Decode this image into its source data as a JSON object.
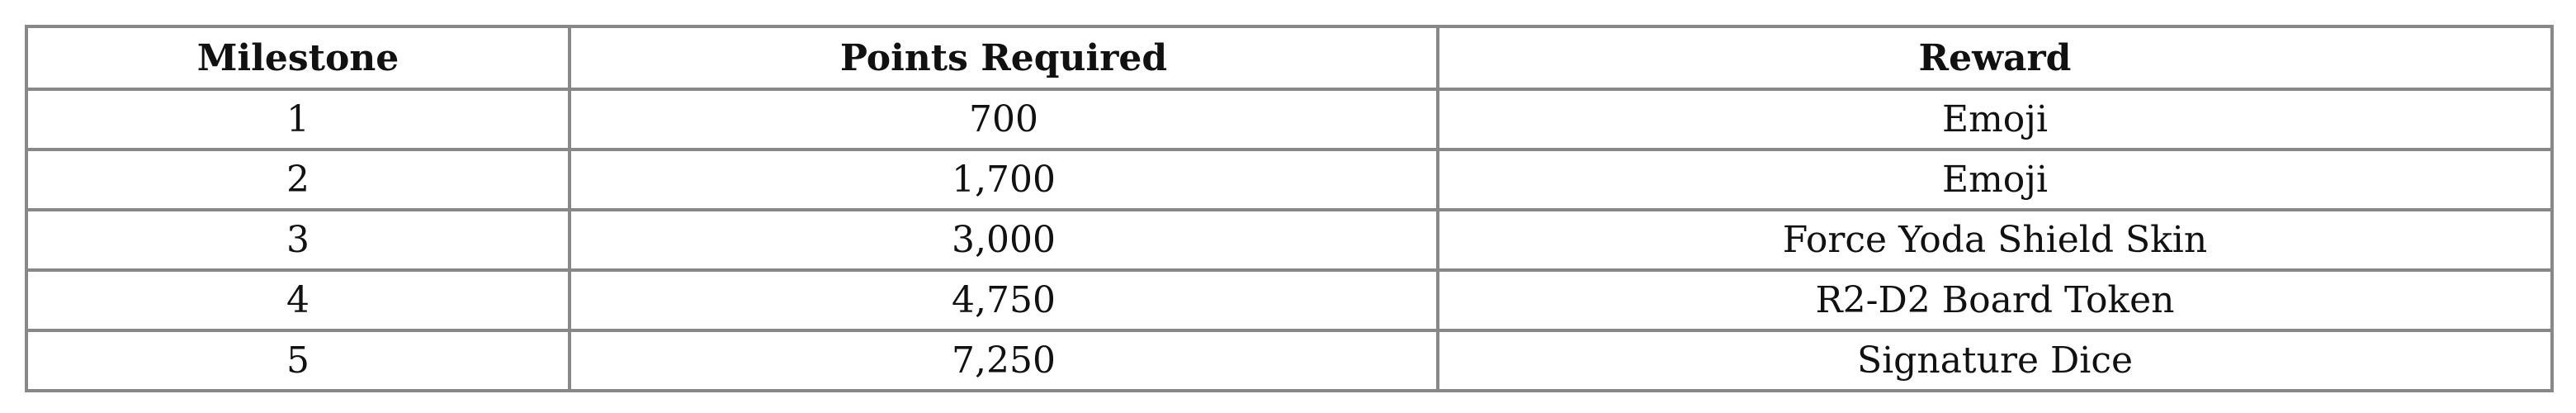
{
  "table": {
    "headers": [
      "Milestone",
      "Points Required",
      "Reward"
    ],
    "rows": [
      [
        "1",
        "700",
        "Emoji"
      ],
      [
        "2",
        "1,700",
        "Emoji"
      ],
      [
        "3",
        "3,000",
        "Force Yoda Shield Skin"
      ],
      [
        "4",
        "4,750",
        "R2-D2 Board Token"
      ],
      [
        "5",
        "7,250",
        "Signature Dice"
      ]
    ]
  }
}
